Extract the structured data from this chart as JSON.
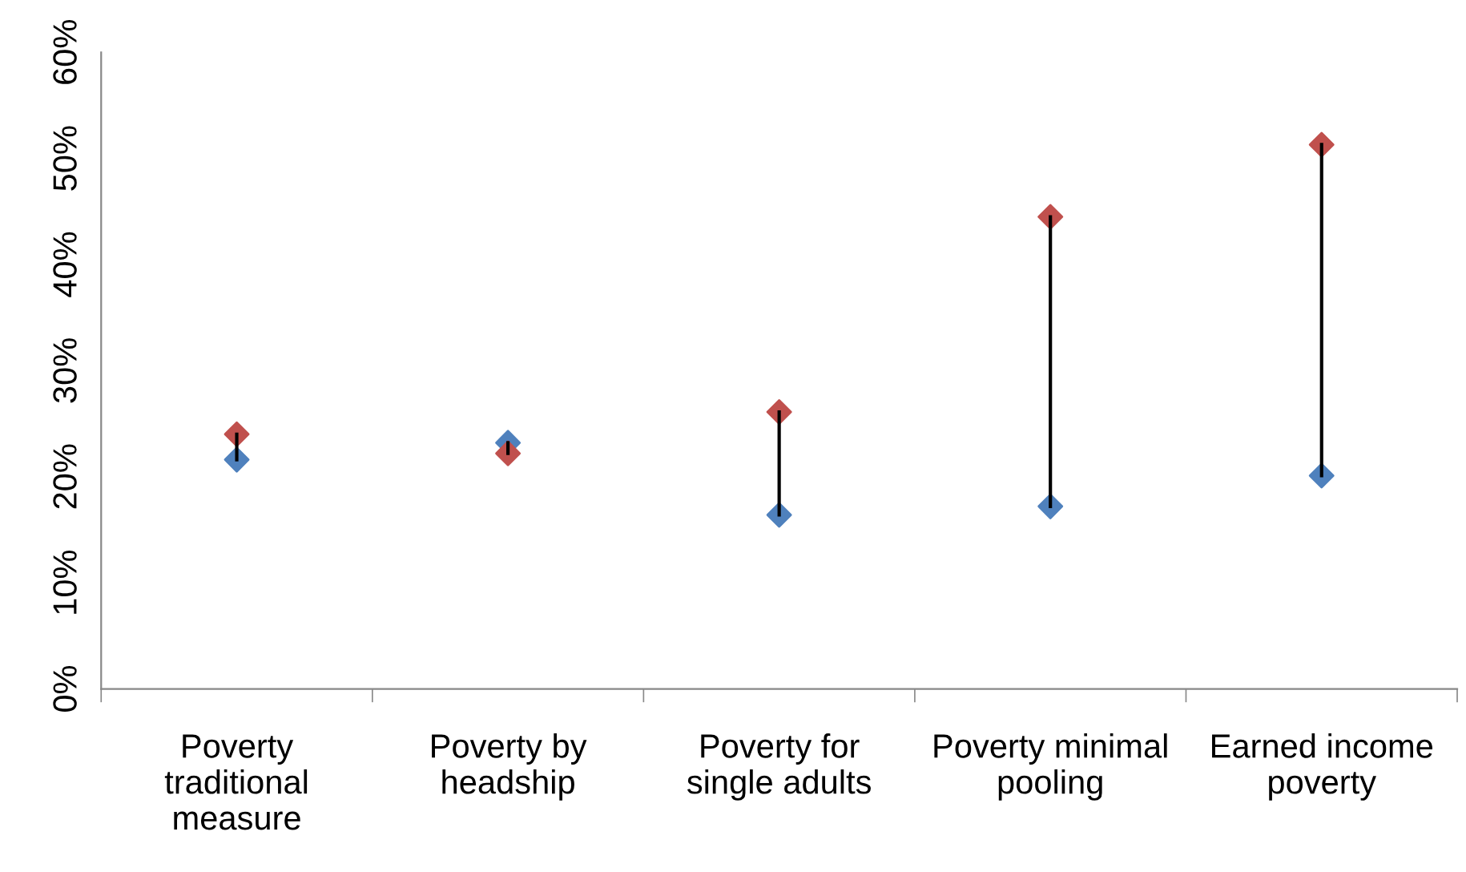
{
  "chart_data": {
    "type": "scatter",
    "categories": [
      "Poverty traditional measure",
      "Poverty by headship",
      "Poverty for single adults",
      "Poverty minimal pooling",
      "Earned income poverty"
    ],
    "ylim": [
      0,
      0.6
    ],
    "yticks": [
      {
        "value": 0,
        "label": "0%"
      },
      {
        "value": 0.1,
        "label": "10%"
      },
      {
        "value": 0.2,
        "label": "20%"
      },
      {
        "value": 0.3,
        "label": "30%"
      },
      {
        "value": 0.4,
        "label": "40%"
      },
      {
        "value": 0.5,
        "label": "50%"
      },
      {
        "value": 0.6,
        "label": "60%"
      }
    ],
    "grid": false,
    "series": [
      {
        "type": "line",
        "color": "#000000",
        "x": [
          "Poverty traditional measure",
          "Poverty traditional measure"
        ],
        "values": [
          0.216,
          0.24
        ]
      },
      {
        "type": "line",
        "color": "#000000",
        "x": [
          "Poverty by headship",
          "Poverty by headship"
        ],
        "values": [
          0.232,
          0.222
        ]
      },
      {
        "type": "line",
        "color": "#000000",
        "x": [
          "Poverty for single adults",
          "Poverty for single adults"
        ],
        "values": [
          0.164,
          0.261
        ]
      },
      {
        "type": "line",
        "color": "#000000",
        "x": [
          "Poverty minimal pooling",
          "Poverty minimal pooling"
        ],
        "values": [
          0.172,
          0.445
        ]
      },
      {
        "type": "line",
        "color": "#000000",
        "x": [
          "Earned income poverty",
          "Earned income poverty"
        ],
        "values": [
          0.201,
          0.513
        ]
      },
      {
        "color": "#4f81bd",
        "marker": "diamond",
        "values": [
          0.216,
          0.232,
          0.164,
          0.172,
          0.201
        ]
      },
      {
        "color": "#c0504d",
        "marker": "diamond",
        "values": [
          0.24,
          0.222,
          0.261,
          0.445,
          0.513
        ]
      }
    ]
  }
}
